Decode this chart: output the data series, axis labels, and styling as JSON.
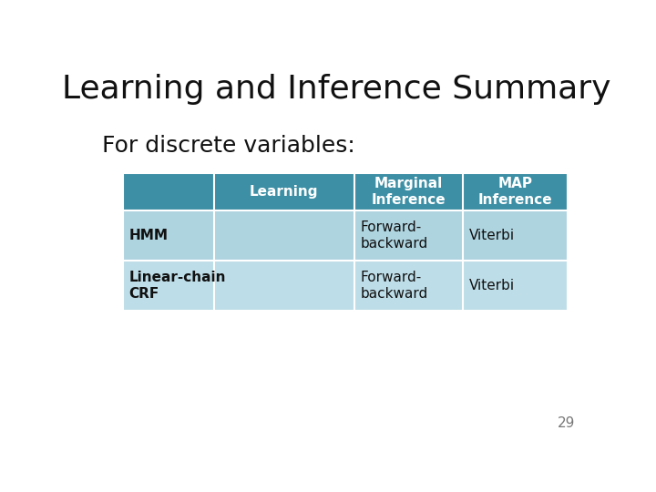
{
  "title": "Learning and Inference Summary",
  "subtitle": "For discrete variables:",
  "title_fontsize": 26,
  "subtitle_fontsize": 18,
  "background_color": "#ffffff",
  "header_bg_color": "#3d8fa5",
  "row1_bg_color": "#aed4e0",
  "row2_bg_color": "#bddde8",
  "header_text_color": "#ffffff",
  "body_text_color": "#111111",
  "page_number": "29",
  "columns": [
    "Learning",
    "Marginal\nInference",
    "MAP\nInference"
  ],
  "rows": [
    {
      "label": "HMM",
      "learning": "",
      "marginal": "Forward-\nbackward",
      "map": "Viterbi"
    },
    {
      "label": "Linear-chain\nCRF",
      "learning": "",
      "marginal": "Forward-\nbackward",
      "map": "Viterbi"
    }
  ]
}
